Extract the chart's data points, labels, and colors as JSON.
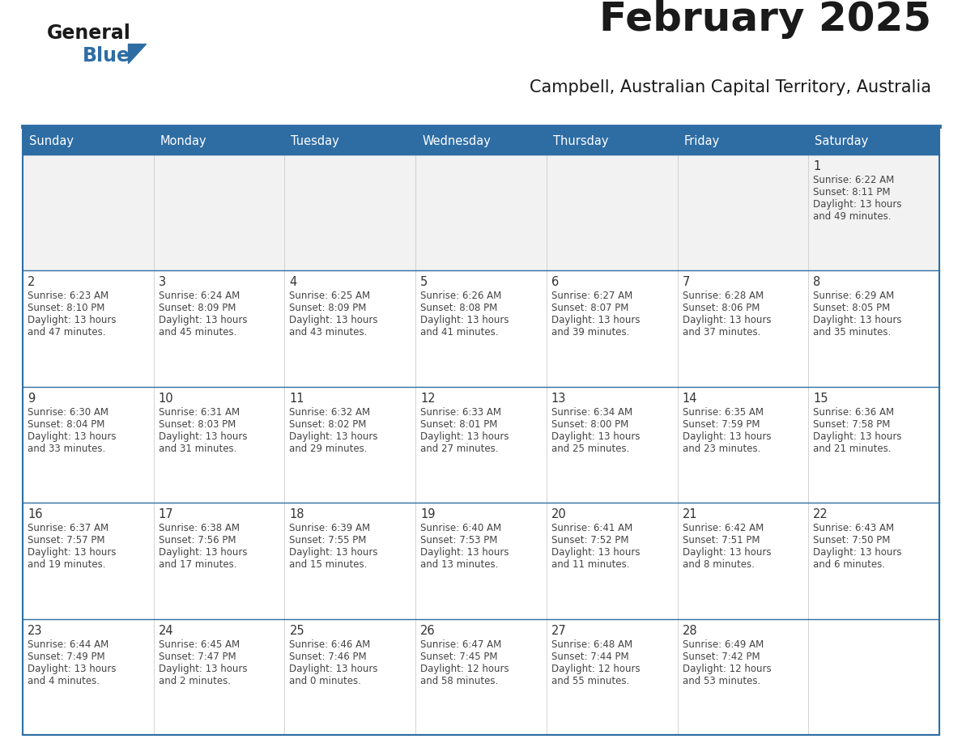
{
  "title": "February 2025",
  "subtitle": "Campbell, Australian Capital Territory, Australia",
  "days_of_week": [
    "Sunday",
    "Monday",
    "Tuesday",
    "Wednesday",
    "Thursday",
    "Friday",
    "Saturday"
  ],
  "header_bg": "#2E6DA4",
  "header_text": "#FFFFFF",
  "cell_bg_gray": "#F2F2F2",
  "cell_bg_white": "#FFFFFF",
  "border_color": "#2E6DA4",
  "text_color": "#444444",
  "day_number_color": "#333333",
  "title_color": "#1a1a1a",
  "logo_general_color": "#1a1a1a",
  "logo_blue_color": "#2E6DA4",
  "logo_triangle_color": "#2E6DA4",
  "calendar_data": [
    [
      null,
      null,
      null,
      null,
      null,
      null,
      {
        "day": 1,
        "sunrise": "6:22 AM",
        "sunset": "8:11 PM",
        "daylight": "13 hours and 49 minutes."
      }
    ],
    [
      {
        "day": 2,
        "sunrise": "6:23 AM",
        "sunset": "8:10 PM",
        "daylight": "13 hours and 47 minutes."
      },
      {
        "day": 3,
        "sunrise": "6:24 AM",
        "sunset": "8:09 PM",
        "daylight": "13 hours and 45 minutes."
      },
      {
        "day": 4,
        "sunrise": "6:25 AM",
        "sunset": "8:09 PM",
        "daylight": "13 hours and 43 minutes."
      },
      {
        "day": 5,
        "sunrise": "6:26 AM",
        "sunset": "8:08 PM",
        "daylight": "13 hours and 41 minutes."
      },
      {
        "day": 6,
        "sunrise": "6:27 AM",
        "sunset": "8:07 PM",
        "daylight": "13 hours and 39 minutes."
      },
      {
        "day": 7,
        "sunrise": "6:28 AM",
        "sunset": "8:06 PM",
        "daylight": "13 hours and 37 minutes."
      },
      {
        "day": 8,
        "sunrise": "6:29 AM",
        "sunset": "8:05 PM",
        "daylight": "13 hours and 35 minutes."
      }
    ],
    [
      {
        "day": 9,
        "sunrise": "6:30 AM",
        "sunset": "8:04 PM",
        "daylight": "13 hours and 33 minutes."
      },
      {
        "day": 10,
        "sunrise": "6:31 AM",
        "sunset": "8:03 PM",
        "daylight": "13 hours and 31 minutes."
      },
      {
        "day": 11,
        "sunrise": "6:32 AM",
        "sunset": "8:02 PM",
        "daylight": "13 hours and 29 minutes."
      },
      {
        "day": 12,
        "sunrise": "6:33 AM",
        "sunset": "8:01 PM",
        "daylight": "13 hours and 27 minutes."
      },
      {
        "day": 13,
        "sunrise": "6:34 AM",
        "sunset": "8:00 PM",
        "daylight": "13 hours and 25 minutes."
      },
      {
        "day": 14,
        "sunrise": "6:35 AM",
        "sunset": "7:59 PM",
        "daylight": "13 hours and 23 minutes."
      },
      {
        "day": 15,
        "sunrise": "6:36 AM",
        "sunset": "7:58 PM",
        "daylight": "13 hours and 21 minutes."
      }
    ],
    [
      {
        "day": 16,
        "sunrise": "6:37 AM",
        "sunset": "7:57 PM",
        "daylight": "13 hours and 19 minutes."
      },
      {
        "day": 17,
        "sunrise": "6:38 AM",
        "sunset": "7:56 PM",
        "daylight": "13 hours and 17 minutes."
      },
      {
        "day": 18,
        "sunrise": "6:39 AM",
        "sunset": "7:55 PM",
        "daylight": "13 hours and 15 minutes."
      },
      {
        "day": 19,
        "sunrise": "6:40 AM",
        "sunset": "7:53 PM",
        "daylight": "13 hours and 13 minutes."
      },
      {
        "day": 20,
        "sunrise": "6:41 AM",
        "sunset": "7:52 PM",
        "daylight": "13 hours and 11 minutes."
      },
      {
        "day": 21,
        "sunrise": "6:42 AM",
        "sunset": "7:51 PM",
        "daylight": "13 hours and 8 minutes."
      },
      {
        "day": 22,
        "sunrise": "6:43 AM",
        "sunset": "7:50 PM",
        "daylight": "13 hours and 6 minutes."
      }
    ],
    [
      {
        "day": 23,
        "sunrise": "6:44 AM",
        "sunset": "7:49 PM",
        "daylight": "13 hours and 4 minutes."
      },
      {
        "day": 24,
        "sunrise": "6:45 AM",
        "sunset": "7:47 PM",
        "daylight": "13 hours and 2 minutes."
      },
      {
        "day": 25,
        "sunrise": "6:46 AM",
        "sunset": "7:46 PM",
        "daylight": "13 hours and 0 minutes."
      },
      {
        "day": 26,
        "sunrise": "6:47 AM",
        "sunset": "7:45 PM",
        "daylight": "12 hours and 58 minutes."
      },
      {
        "day": 27,
        "sunrise": "6:48 AM",
        "sunset": "7:44 PM",
        "daylight": "12 hours and 55 minutes."
      },
      {
        "day": 28,
        "sunrise": "6:49 AM",
        "sunset": "7:42 PM",
        "daylight": "12 hours and 53 minutes."
      },
      null
    ]
  ]
}
